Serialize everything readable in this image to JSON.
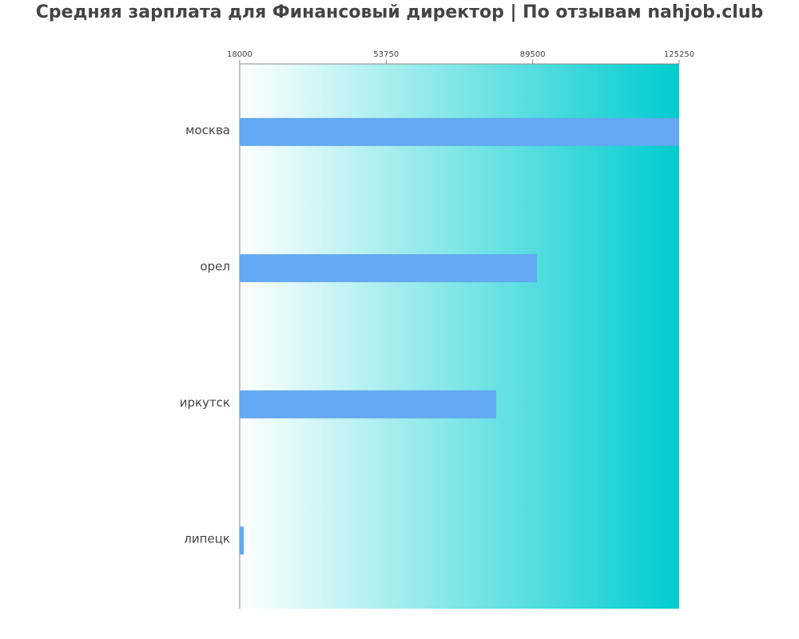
{
  "chart_data": {
    "type": "bar",
    "orientation": "horizontal",
    "title": "Средняя зарплата для Финансовый директор | По отзывам nahjob.club",
    "categories": [
      "москва",
      "орел",
      "иркутск",
      "липецк"
    ],
    "values": [
      125250,
      90500,
      80600,
      19000
    ],
    "color": "#63a8f2",
    "background_gradient": [
      "#ffffff",
      "#00cccf"
    ],
    "xlim": [
      18000,
      125250
    ],
    "xticks": [
      18000,
      53750,
      89500,
      125250
    ]
  }
}
